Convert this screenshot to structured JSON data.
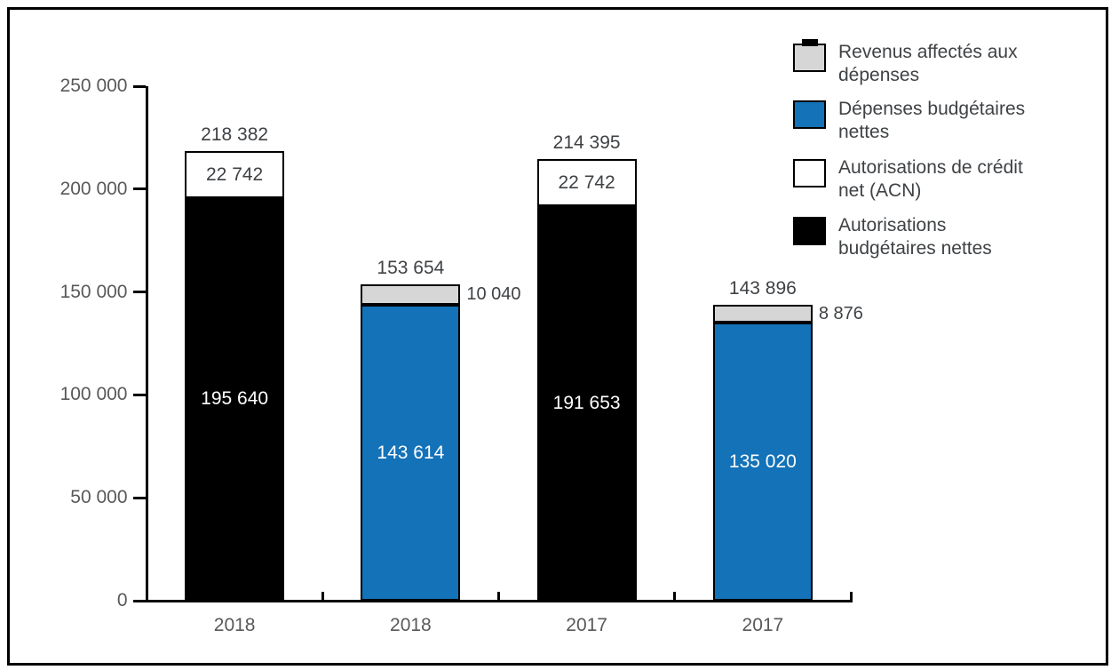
{
  "chart_data": {
    "type": "stacked-bar",
    "title": "",
    "ylim": [
      0,
      250000
    ],
    "y_ticks": [
      {
        "value": 0,
        "label": "0"
      },
      {
        "value": 50000,
        "label": "50 000"
      },
      {
        "value": 100000,
        "label": "100 000"
      },
      {
        "value": 150000,
        "label": "150 000"
      },
      {
        "value": 200000,
        "label": "200 000"
      },
      {
        "value": 250000,
        "label": "250 000"
      }
    ],
    "categories": [
      "2018",
      "2018",
      "2017",
      "2017"
    ],
    "series_styles": {
      "revenus": {
        "name": "Revenus affectés aux dépenses",
        "fill": "#d6d6d6",
        "border": "#000000",
        "label_mode": "side",
        "label_color": "#3f4245",
        "textured": true
      },
      "depenses": {
        "name": "Dépenses budgétaires nettes",
        "fill": "#1372b8",
        "border": "#000000",
        "label_mode": "inside",
        "label_color": "#ffffff",
        "textured": false
      },
      "acn": {
        "name": "Autorisations de crédit net (ACN)",
        "fill": "#ffffff",
        "border": "#000000",
        "label_mode": "inside",
        "label_color": "#3f4245",
        "textured": false
      },
      "autorisations": {
        "name": "Autorisations budgétaires nettes",
        "fill": "#000000",
        "border": "#000000",
        "label_mode": "inside",
        "label_color": "#ffffff",
        "textured": false
      }
    },
    "bars": [
      {
        "category": "2018",
        "total": 218382,
        "total_label": "218 382",
        "segments": [
          {
            "series": "autorisations",
            "value": 195640,
            "label": "195 640"
          },
          {
            "series": "acn",
            "value": 22742,
            "label": "22 742"
          }
        ]
      },
      {
        "category": "2018",
        "total": 153654,
        "total_label": "153 654",
        "segments": [
          {
            "series": "depenses",
            "value": 143614,
            "label": "143 614"
          },
          {
            "series": "revenus",
            "value": 10040,
            "label": "10 040"
          }
        ]
      },
      {
        "category": "2017",
        "total": 214395,
        "total_label": "214 395",
        "segments": [
          {
            "series": "autorisations",
            "value": 191653,
            "label": "191 653"
          },
          {
            "series": "acn",
            "value": 22742,
            "label": "22 742"
          }
        ]
      },
      {
        "category": "2017",
        "total": 143896,
        "total_label": "143 896",
        "segments": [
          {
            "series": "depenses",
            "value": 135020,
            "label": "135 020"
          },
          {
            "series": "revenus",
            "value": 8876,
            "label": "8 876"
          }
        ]
      }
    ],
    "legend": [
      {
        "series": "revenus",
        "label": "Revenus affectés aux dépenses",
        "lines": [
          "Revenus affectés aux",
          "dépenses"
        ]
      },
      {
        "series": "depenses",
        "label": "Dépenses budgétaires nettes",
        "lines": [
          "Dépenses budgétaires",
          "nettes"
        ]
      },
      {
        "series": "acn",
        "label": "Autorisations de crédit net (ACN)",
        "lines": [
          "Autorisations de crédit",
          "net (ACN)"
        ]
      },
      {
        "series": "autorisations",
        "label": "Autorisations budgétaires nettes",
        "lines": [
          "Autorisations",
          "budgétaires nettes"
        ]
      }
    ],
    "legend_position": "top-right",
    "grid": "off",
    "colors": {
      "axis": "#000000",
      "tick_label": "#595959",
      "data_label": "#3f4245",
      "frame_border": "#000000",
      "background": "#ffffff"
    }
  }
}
